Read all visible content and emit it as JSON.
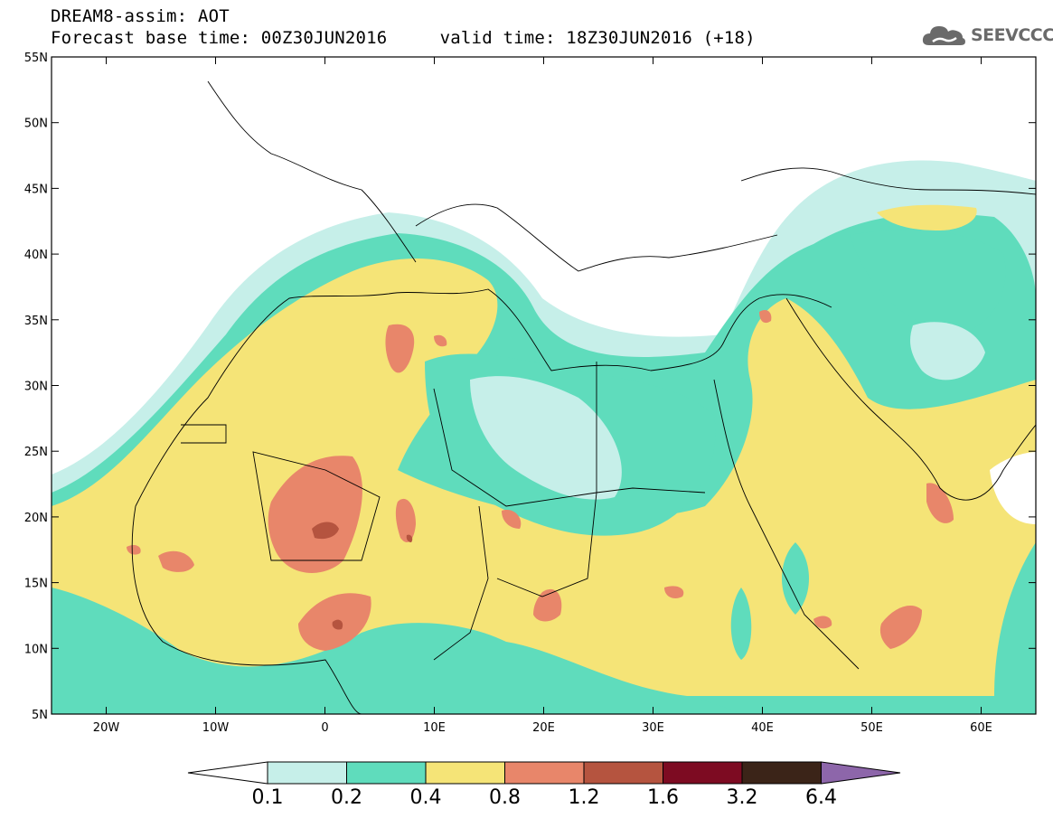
{
  "title_line1": "DREAM8-assim: AOT",
  "title_line2": "Forecast base time: 00Z30JUN2016     valid time: 18Z30JUN2016 (+18)",
  "logo": {
    "text": "SEEVCCC",
    "icon": "cloud-icon"
  },
  "map": {
    "lon_range": [
      -25,
      65
    ],
    "lat_range": [
      5,
      55
    ],
    "lat_ticks": [
      "55N",
      "50N",
      "45N",
      "40N",
      "35N",
      "30N",
      "25N",
      "20N",
      "15N",
      "10N",
      "5N"
    ],
    "lon_ticks": [
      "20W",
      "10W",
      "0",
      "10E",
      "20E",
      "30E",
      "40E",
      "50E",
      "60E"
    ]
  },
  "colorbar": {
    "colors": [
      "#ffffff",
      "#c6efe9",
      "#5fdcbc",
      "#f5e477",
      "#e8866a",
      "#b5543f",
      "#7d0b22",
      "#3b2418",
      "#8d66aa"
    ],
    "labels": [
      "0.1",
      "0.2",
      "0.4",
      "0.8",
      "1.2",
      "1.6",
      "3.2",
      "6.4"
    ]
  }
}
